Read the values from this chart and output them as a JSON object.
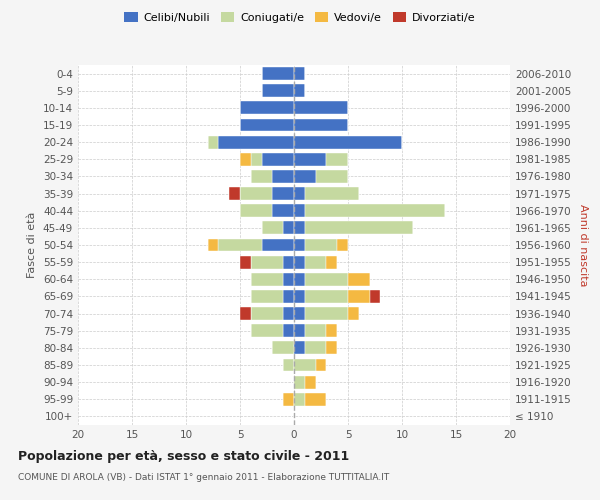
{
  "age_groups": [
    "100+",
    "95-99",
    "90-94",
    "85-89",
    "80-84",
    "75-79",
    "70-74",
    "65-69",
    "60-64",
    "55-59",
    "50-54",
    "45-49",
    "40-44",
    "35-39",
    "30-34",
    "25-29",
    "20-24",
    "15-19",
    "10-14",
    "5-9",
    "0-4"
  ],
  "birth_years": [
    "≤ 1910",
    "1911-1915",
    "1916-1920",
    "1921-1925",
    "1926-1930",
    "1931-1935",
    "1936-1940",
    "1941-1945",
    "1946-1950",
    "1951-1955",
    "1956-1960",
    "1961-1965",
    "1966-1970",
    "1971-1975",
    "1976-1980",
    "1981-1985",
    "1986-1990",
    "1991-1995",
    "1996-2000",
    "2001-2005",
    "2006-2010"
  ],
  "male_celibe": [
    0,
    0,
    0,
    0,
    0,
    1,
    1,
    1,
    1,
    1,
    3,
    1,
    2,
    2,
    2,
    3,
    7,
    5,
    5,
    3,
    3
  ],
  "male_coniugato": [
    0,
    0,
    0,
    1,
    2,
    3,
    3,
    3,
    3,
    3,
    4,
    2,
    3,
    3,
    2,
    1,
    1,
    0,
    0,
    0,
    0
  ],
  "male_vedovo": [
    0,
    1,
    0,
    0,
    0,
    0,
    0,
    0,
    0,
    0,
    1,
    0,
    0,
    0,
    0,
    1,
    0,
    0,
    0,
    0,
    0
  ],
  "male_divorziato": [
    0,
    0,
    0,
    0,
    0,
    0,
    1,
    0,
    0,
    1,
    0,
    0,
    0,
    1,
    0,
    0,
    0,
    0,
    0,
    0,
    0
  ],
  "female_celibe": [
    0,
    0,
    0,
    0,
    1,
    1,
    1,
    1,
    1,
    1,
    1,
    1,
    1,
    1,
    2,
    3,
    10,
    5,
    5,
    1,
    1
  ],
  "female_coniugato": [
    0,
    1,
    1,
    2,
    2,
    2,
    4,
    4,
    4,
    2,
    3,
    10,
    13,
    5,
    3,
    2,
    0,
    0,
    0,
    0,
    0
  ],
  "female_vedovo": [
    0,
    2,
    1,
    1,
    1,
    1,
    1,
    2,
    2,
    1,
    1,
    0,
    0,
    0,
    0,
    0,
    0,
    0,
    0,
    0,
    0
  ],
  "female_divorziato": [
    0,
    0,
    0,
    0,
    0,
    0,
    0,
    1,
    0,
    0,
    0,
    0,
    0,
    0,
    0,
    0,
    0,
    0,
    0,
    0,
    0
  ],
  "color_celibe": "#4472c4",
  "color_coniugato": "#c5d9a0",
  "color_vedovo": "#f4b942",
  "color_divorziato": "#c0392b",
  "title": "Popolazione per età, sesso e stato civile - 2011",
  "subtitle": "COMUNE DI AROLA (VB) - Dati ISTAT 1° gennaio 2011 - Elaborazione TUTTITALIA.IT",
  "ylabel_left": "Fasce di età",
  "ylabel_right": "Anni di nascita",
  "xlim": 20,
  "bg_color": "#f5f5f5",
  "plot_bg": "#ffffff",
  "grid_color": "#cccccc"
}
